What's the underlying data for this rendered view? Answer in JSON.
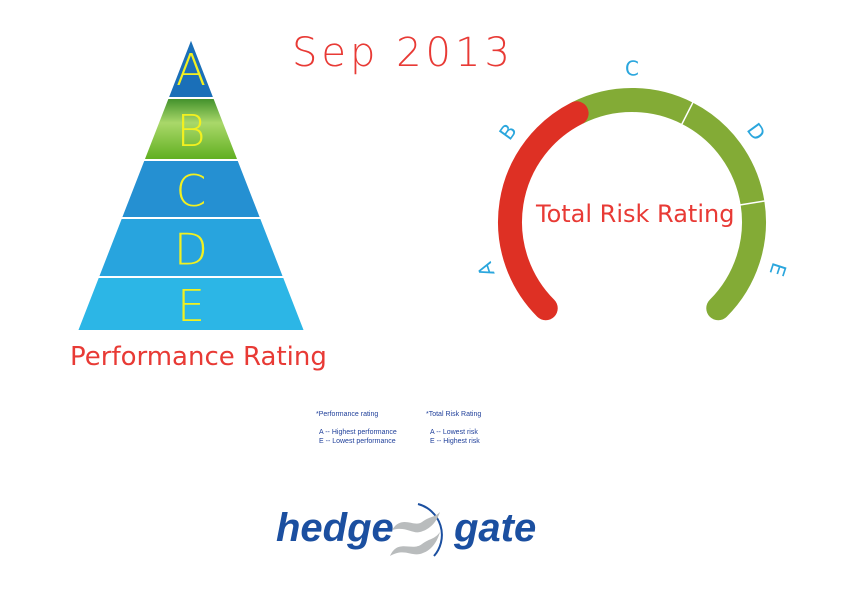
{
  "title": "Sep 2013",
  "performance": {
    "label": "Performance Rating",
    "levels": [
      "A",
      "B",
      "C",
      "D",
      "E"
    ],
    "highlighted": "B"
  },
  "risk": {
    "label": "Total Risk Rating",
    "levels": [
      "A",
      "B",
      "C",
      "D",
      "E"
    ],
    "current_range": [
      "A",
      "B"
    ],
    "colors": {
      "active": "#de3024",
      "inactive": "#83ab36",
      "label": "#2aa6dd"
    }
  },
  "legend": {
    "perf_title": "*Performance rating",
    "perf_a": "A -- Highest performance",
    "perf_e": "E -- Lowest performance",
    "risk_title": "*Total Risk Rating",
    "risk_a": "A -- Lowest risk",
    "risk_e": "E -- Highest risk"
  },
  "logo": {
    "left": "hedge",
    "right": "gate"
  }
}
